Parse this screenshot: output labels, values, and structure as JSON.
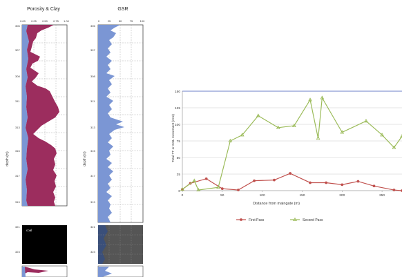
{
  "log1": {
    "title": "Porosity & Clay",
    "top_ticks": [
      "0.00",
      "0.25",
      "0.50",
      "0.75",
      "1.00"
    ],
    "depth_ticks": [
      "306",
      "307",
      "308",
      "311",
      "313",
      "315",
      "317",
      "319",
      "321",
      "323"
    ],
    "depth_label": "depth (m)",
    "coal_label": "coal"
  },
  "log2": {
    "title": "GSR",
    "top_ticks": [
      "0",
      "25",
      "50",
      "75",
      "100"
    ],
    "depth_ticks": [
      "306",
      "307",
      "308",
      "311",
      "313",
      "315",
      "317",
      "319",
      "321",
      "323"
    ],
    "depth_label": "depth (m)"
  },
  "chart_data": {
    "type": "line",
    "title": "",
    "xlabel": "Distance from maingate (m)",
    "ylabel": "Total TT or GSL movement (mm)",
    "xlim": [
      0,
      275
    ],
    "ylim": [
      0,
      150
    ],
    "xticks": [
      0,
      50,
      100,
      150,
      200,
      250
    ],
    "yticks": [
      0,
      25,
      50,
      75,
      100,
      125,
      150
    ],
    "legend_position": "bottom",
    "series": [
      {
        "name": "First Pass",
        "color": "#c0504d",
        "marker": "circle",
        "points": [
          [
            0,
            2
          ],
          [
            10,
            11
          ],
          [
            30,
            18
          ],
          [
            50,
            3
          ],
          [
            70,
            1
          ],
          [
            90,
            15
          ],
          [
            115,
            16
          ],
          [
            135,
            26
          ],
          [
            160,
            12
          ],
          [
            180,
            12
          ],
          [
            200,
            9
          ],
          [
            220,
            14
          ],
          [
            240,
            7
          ],
          [
            265,
            1
          ],
          [
            275,
            0
          ]
        ]
      },
      {
        "name": "Second Pass",
        "color": "#9bbb59",
        "marker": "triangle",
        "points": [
          [
            0,
            2
          ],
          [
            15,
            15
          ],
          [
            20,
            1
          ],
          [
            45,
            5
          ],
          [
            60,
            75
          ],
          [
            75,
            84
          ],
          [
            95,
            113
          ],
          [
            120,
            95
          ],
          [
            140,
            98
          ],
          [
            160,
            137
          ],
          [
            170,
            79
          ],
          [
            175,
            140
          ],
          [
            200,
            88
          ],
          [
            230,
            105
          ],
          [
            250,
            84
          ],
          [
            265,
            65
          ],
          [
            275,
            82
          ]
        ]
      }
    ]
  }
}
